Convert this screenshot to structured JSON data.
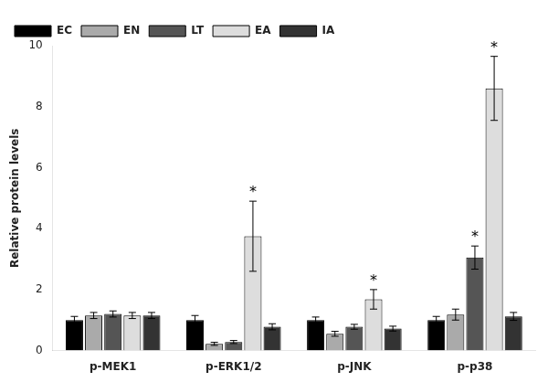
{
  "chart_data": {
    "type": "bar",
    "categories": [
      "p-MEK1",
      "p-ERK1/2",
      "p-JNK",
      "p-p38"
    ],
    "series": [
      {
        "name": "EC",
        "color": "#000000",
        "values": [
          1.0,
          1.0,
          1.0,
          1.0
        ],
        "errors": [
          0.12,
          0.15,
          0.1,
          0.12
        ]
      },
      {
        "name": "EN",
        "color": "#aaaaaa",
        "values": [
          1.15,
          0.22,
          0.55,
          1.18
        ],
        "errors": [
          0.1,
          0.05,
          0.08,
          0.18
        ]
      },
      {
        "name": "LT",
        "color": "#555555",
        "values": [
          1.2,
          0.28,
          0.78,
          3.05
        ],
        "errors": [
          0.1,
          0.05,
          0.08,
          0.38
        ]
      },
      {
        "name": "EA",
        "color": "#dddddd",
        "values": [
          1.15,
          3.75,
          1.68,
          8.6
        ],
        "errors": [
          0.1,
          1.15,
          0.32,
          1.05
        ]
      },
      {
        "name": "IA",
        "color": "#333333",
        "values": [
          1.15,
          0.78,
          0.72,
          1.12
        ],
        "errors": [
          0.1,
          0.1,
          0.08,
          0.13
        ]
      }
    ],
    "ylabel": "Relative protein levels",
    "ylim": [
      0,
      10
    ],
    "yticks": [
      0,
      2,
      4,
      6,
      8,
      10
    ],
    "grid": false,
    "legend": "upper left",
    "annotations": [
      {
        "text": "*",
        "category": "p-ERK1/2",
        "series": "EA"
      },
      {
        "text": "*",
        "category": "p-JNK",
        "series": "EA"
      },
      {
        "text": "*",
        "category": "p-p38",
        "series": "LT"
      },
      {
        "text": "*",
        "category": "p-p38",
        "series": "EA"
      }
    ]
  }
}
